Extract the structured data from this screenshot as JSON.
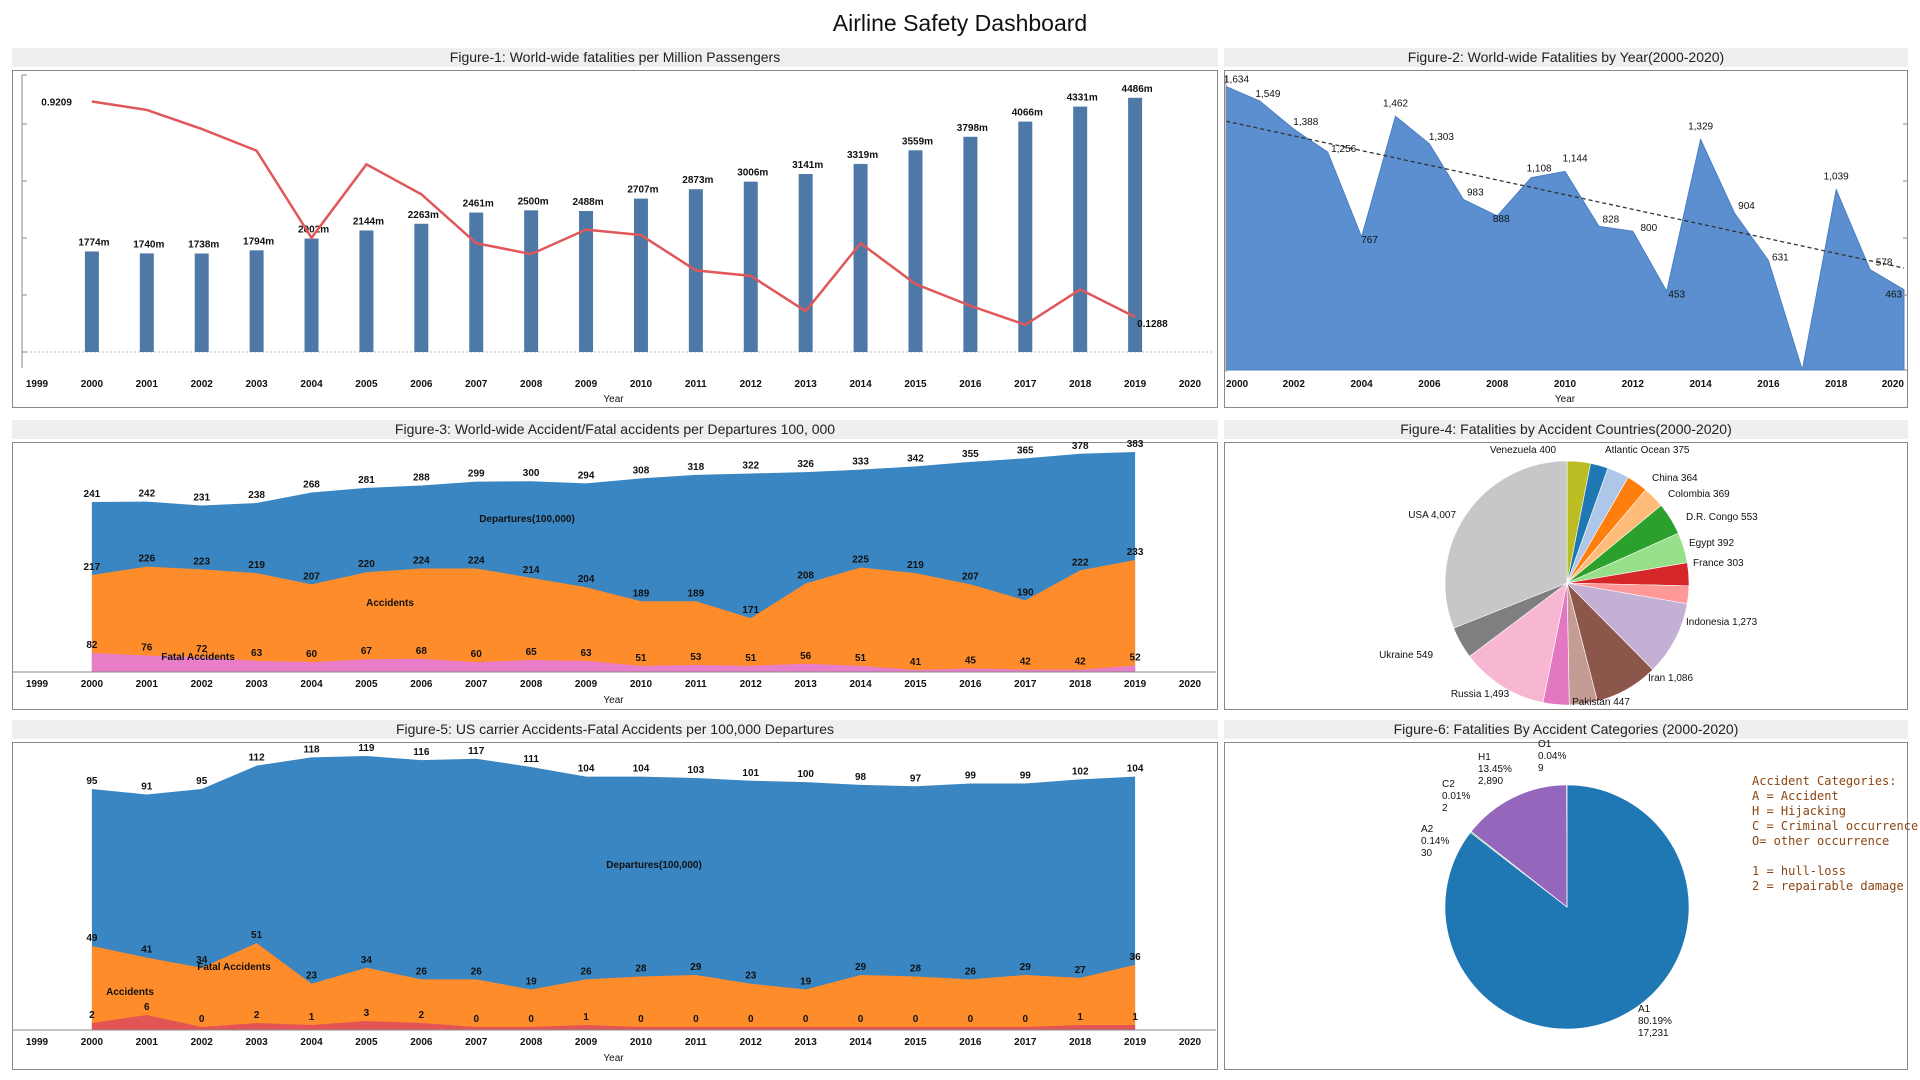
{
  "dashboard": {
    "title": "Airline Safety Dashboard"
  },
  "colors": {
    "bar": "#4e79a7",
    "line": "#e15759",
    "area_blue": "#5b8fd0",
    "departures": "#3a86c2",
    "accidents": "#ff8c2a",
    "fatal": "#e87ec8",
    "fatal_red": "#e35555"
  },
  "chart_data": [
    {
      "id": "fig1",
      "type": "bar",
      "title": "Figure-1: World-wide fatalities per Million Passengers",
      "xlabel": "Year",
      "ylabel": "",
      "x_ticks": [
        "1999",
        "2000",
        "2001",
        "2002",
        "2003",
        "2004",
        "2005",
        "2006",
        "2007",
        "2008",
        "2009",
        "2010",
        "2011",
        "2012",
        "2013",
        "2014",
        "2015",
        "2016",
        "2017",
        "2018",
        "2019",
        "2020"
      ],
      "categories": [
        2000,
        2001,
        2002,
        2003,
        2004,
        2005,
        2006,
        2007,
        2008,
        2009,
        2010,
        2011,
        2012,
        2013,
        2014,
        2015,
        2016,
        2017,
        2018,
        2019
      ],
      "series": [
        {
          "type": "bar",
          "values": [
            1774,
            1740,
            1738,
            1794,
            2002,
            2144,
            2263,
            2461,
            2500,
            2488,
            2707,
            2873,
            3006,
            3141,
            3319,
            3559,
            3798,
            4066,
            4331,
            4486
          ],
          "labels": [
            "1774m",
            "1740m",
            "1738m",
            "1794m",
            "2002m",
            "2144m",
            "2263m",
            "2461m",
            "2500m",
            "2488m",
            "2707m",
            "2873m",
            "3006m",
            "3141m",
            "3319m",
            "3559m",
            "3798m",
            "4066m",
            "4331m",
            "4486m"
          ]
        },
        {
          "type": "line",
          "values": [
            0.9209,
            0.89,
            0.82,
            0.74,
            0.42,
            0.69,
            0.58,
            0.4,
            0.36,
            0.45,
            0.43,
            0.3,
            0.28,
            0.15,
            0.4,
            0.25,
            0.17,
            0.1,
            0.23,
            0.1288
          ],
          "labels": {
            "0": "0.9209",
            "19": "0.1288"
          }
        }
      ],
      "bar_ylim": [
        0,
        4800
      ],
      "line_ylim": [
        0,
        1.0
      ]
    },
    {
      "id": "fig2",
      "type": "area",
      "title": "Figure-2: World-wide Fatalities by Year(2000-2020)",
      "xlabel": "Year",
      "x_ticks": [
        "2000",
        "2002",
        "2004",
        "2006",
        "2008",
        "2010",
        "2012",
        "2014",
        "2016",
        "2018",
        "2020"
      ],
      "x": [
        2000,
        2001,
        2002,
        2003,
        2004,
        2005,
        2006,
        2007,
        2008,
        2009,
        2010,
        2011,
        2012,
        2013,
        2014,
        2015,
        2016,
        2017,
        2018,
        2019,
        2020
      ],
      "values": [
        1634,
        1549,
        1388,
        1256,
        767,
        1462,
        1303,
        983,
        888,
        1108,
        1144,
        828,
        800,
        453,
        1329,
        904,
        631,
        null,
        1039,
        578,
        463
      ],
      "labels": [
        "1,634",
        "1,549",
        "1,388",
        "1,256",
        "767",
        "1,462",
        "1,303",
        "983",
        "888",
        "1,108",
        "1,144",
        "828",
        "800",
        "453",
        "1,329",
        "904",
        "631",
        null,
        "1,039",
        "578",
        "463"
      ],
      "trendline": true,
      "ylim": [
        0,
        1700
      ]
    },
    {
      "id": "fig3",
      "type": "area",
      "title": "Figure-3: World-wide  Accident/Fatal accidents per Departures 100, 000",
      "xlabel": "Year",
      "x_ticks": [
        "1999",
        "2000",
        "2001",
        "2002",
        "2003",
        "2004",
        "2005",
        "2006",
        "2007",
        "2008",
        "2009",
        "2010",
        "2011",
        "2012",
        "2013",
        "2014",
        "2015",
        "2016",
        "2017",
        "2018",
        "2019",
        "2020"
      ],
      "categories": [
        2000,
        2001,
        2002,
        2003,
        2004,
        2005,
        2006,
        2007,
        2008,
        2009,
        2010,
        2011,
        2012,
        2013,
        2014,
        2015,
        2016,
        2017,
        2018,
        2019
      ],
      "series": [
        {
          "name": "Departures(100,000)",
          "values": [
            241,
            242,
            231,
            238,
            268,
            281,
            288,
            299,
            300,
            294,
            308,
            318,
            322,
            326,
            333,
            342,
            355,
            365,
            378,
            383
          ]
        },
        {
          "name": "Accidents",
          "values": [
            217,
            226,
            223,
            219,
            207,
            220,
            224,
            224,
            214,
            204,
            189,
            189,
            171,
            208,
            225,
            219,
            207,
            190,
            222,
            233
          ]
        },
        {
          "name": "Fatal Accidents",
          "values": [
            82,
            76,
            72,
            63,
            60,
            67,
            68,
            60,
            65,
            63,
            51,
            53,
            51,
            56,
            51,
            41,
            45,
            42,
            42,
            52
          ]
        }
      ],
      "ylim": [
        0,
        390
      ]
    },
    {
      "id": "fig4",
      "type": "pie",
      "title": "Figure-4: Fatalities by Accident Countries(2000-2020)",
      "slices": [
        {
          "label": "Venezuela 400",
          "value": 400,
          "color": "#bcbd22"
        },
        {
          "label": "",
          "value": 304,
          "color": "#1f77b4"
        },
        {
          "label": "Atlantic Ocean 375",
          "value": 375,
          "color": "#aec7e8"
        },
        {
          "label": "China 364",
          "value": 364,
          "color": "#ff7f0e"
        },
        {
          "label": "Colombia 369",
          "value": 369,
          "color": "#ffbb78"
        },
        {
          "label": "D.R. Congo 553",
          "value": 553,
          "color": "#2ca02c"
        },
        {
          "label": "",
          "value": 520,
          "color": "#98df8a"
        },
        {
          "label": "Egypt 392",
          "value": 392,
          "color": "#d62728"
        },
        {
          "label": "France 303",
          "value": 303,
          "color": "#ff9896"
        },
        {
          "label": "Indonesia 1,273",
          "value": 1273,
          "color": "#c5b0d5"
        },
        {
          "label": "Iran 1,086",
          "value": 1086,
          "color": "#8c564b"
        },
        {
          "label": "",
          "value": 480,
          "color": "#c49c94"
        },
        {
          "label": "Pakistan 447",
          "value": 447,
          "color": "#e377c2"
        },
        {
          "label": "Russia 1,493",
          "value": 1493,
          "color": "#f7b6d2"
        },
        {
          "label": "Ukraine 549",
          "value": 549,
          "color": "#7f7f7f"
        },
        {
          "label": "USA 4,007",
          "value": 4007,
          "color": "#c7c7c7"
        }
      ]
    },
    {
      "id": "fig5",
      "type": "area",
      "title": "Figure-5: US carrier Accidents-Fatal Accidents per 100,000 Departures",
      "xlabel": "Year",
      "x_ticks": [
        "1999",
        "2000",
        "2001",
        "2002",
        "2003",
        "2004",
        "2005",
        "2006",
        "2007",
        "2008",
        "2009",
        "2010",
        "2011",
        "2012",
        "2013",
        "2014",
        "2015",
        "2016",
        "2017",
        "2018",
        "2019",
        "2020"
      ],
      "categories": [
        2000,
        2001,
        2002,
        2003,
        2004,
        2005,
        2006,
        2007,
        2008,
        2009,
        2010,
        2011,
        2012,
        2013,
        2014,
        2015,
        2016,
        2017,
        2018,
        2019
      ],
      "series": [
        {
          "name": "Departures(100,000)",
          "values": [
            95,
            91,
            95,
            112,
            118,
            119,
            116,
            117,
            111,
            104,
            104,
            103,
            101,
            100,
            98,
            97,
            99,
            99,
            102,
            104
          ]
        },
        {
          "name": "Accidents",
          "values": [
            49,
            41,
            34,
            51,
            23,
            34,
            26,
            26,
            19,
            26,
            28,
            29,
            23,
            19,
            29,
            28,
            26,
            29,
            27,
            36
          ]
        },
        {
          "name": "Fatal Accidents",
          "values": [
            2,
            6,
            0,
            2,
            1,
            3,
            2,
            0,
            0,
            1,
            0,
            0,
            0,
            0,
            0,
            0,
            0,
            0,
            1,
            1
          ]
        }
      ]
    },
    {
      "id": "fig6",
      "type": "pie",
      "title": "Figure-6: Fatalities By Accident Categories (2000-2020)",
      "slices": [
        {
          "name": "A1",
          "pct": "80.19%",
          "count": "17,231",
          "value": 17231,
          "color": "#1f77b4"
        },
        {
          "name": "A2",
          "pct": "0.14%",
          "count": "30",
          "value": 30,
          "color": "#2ca02c"
        },
        {
          "name": "C2",
          "pct": "0.01%",
          "count": "2",
          "value": 2,
          "color": "#d62728"
        },
        {
          "name": "H1",
          "pct": "13.45%",
          "count": "2,890",
          "value": 2890,
          "color": "#9467bd"
        },
        {
          "name": "O1",
          "pct": "0.04%",
          "count": "9",
          "value": 9,
          "color": "#8c564b"
        }
      ],
      "legend": [
        "Accident Categories:",
        "A = Accident",
        "H = Hijacking",
        "C = Criminal occurrence",
        "O= other occurrence",
        "",
        "1 = hull-loss",
        "2 = repairable damage"
      ]
    }
  ]
}
